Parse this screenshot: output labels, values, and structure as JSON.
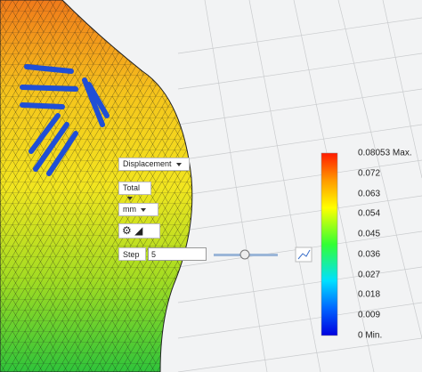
{
  "toolbar": {
    "result_type": "Displacement",
    "component": "Total",
    "unit": "mm",
    "step_label": "Step",
    "step_value": "5"
  },
  "legend": {
    "labels": [
      "0.08053 Max.",
      "0.072",
      "0.063",
      "0.054",
      "0.045",
      "0.036",
      "0.027",
      "0.018",
      "0.009",
      "0 Min."
    ]
  }
}
